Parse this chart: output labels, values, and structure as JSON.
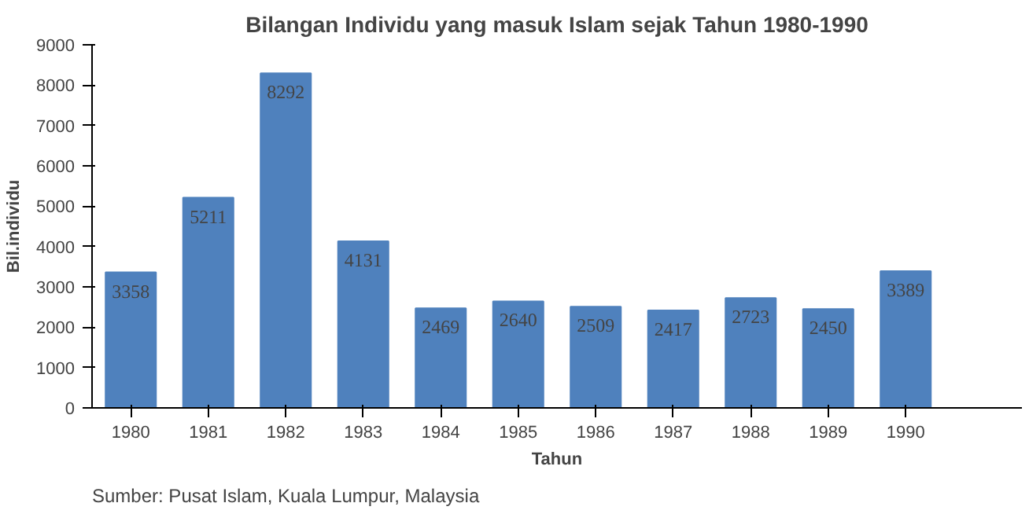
{
  "chart_data": {
    "type": "bar",
    "title": "Bilangan Individu yang masuk Islam sejak Tahun 1980-1990",
    "xlabel": "Tahun",
    "ylabel": "Bil.individu",
    "categories": [
      "1980",
      "1981",
      "1982",
      "1983",
      "1984",
      "1985",
      "1986",
      "1987",
      "1988",
      "1989",
      "1990",
      null
    ],
    "values": [
      3358,
      5211,
      8292,
      4131,
      2469,
      2640,
      2509,
      2417,
      2723,
      2450,
      3389,
      null
    ],
    "color": "#4f81bd",
    "ylim": [
      0,
      9000
    ],
    "yticks": [
      0,
      1000,
      2000,
      3000,
      4000,
      5000,
      6000,
      7000,
      8000,
      9000
    ],
    "grid": false,
    "data_labels": true,
    "annotations": [
      "Sumber: Pusat Islam, Kuala Lumpur, Malaysia"
    ]
  }
}
